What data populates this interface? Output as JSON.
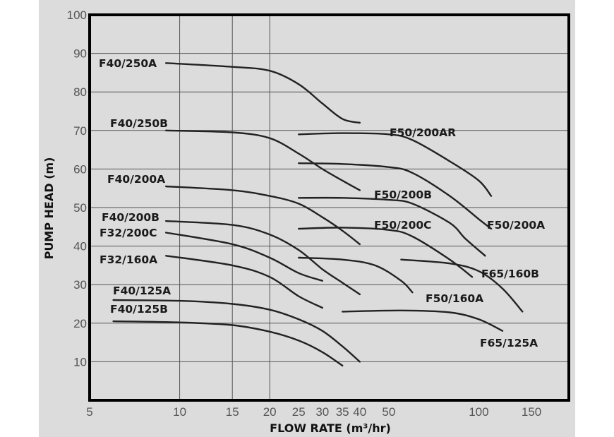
{
  "chart_data": {
    "type": "line",
    "title": "",
    "xlabel": "FLOW RATE (m³/hr)",
    "ylabel": "PUMP HEAD (m)",
    "xscale": "log",
    "xlim": [
      5,
      200
    ],
    "ylim": [
      0,
      100
    ],
    "grid": true,
    "x_ticks": [
      5,
      10,
      15,
      20,
      25,
      30,
      35,
      40,
      50,
      100,
      150
    ],
    "x_gridlines": [
      10,
      15,
      20
    ],
    "y_ticks": [
      10,
      20,
      30,
      40,
      50,
      60,
      70,
      80,
      90,
      100
    ],
    "y_gridlines": [
      10,
      20,
      30,
      40,
      50,
      60,
      70,
      80,
      90
    ],
    "series": [
      {
        "name": "F40/250A",
        "x": [
          9,
          15,
          20,
          25,
          30,
          35,
          40
        ],
        "y": [
          87.5,
          86.5,
          85.5,
          82,
          77,
          73,
          72
        ]
      },
      {
        "name": "F40/250B",
        "x": [
          9,
          15,
          20,
          25,
          30,
          35,
          40
        ],
        "y": [
          70,
          69.5,
          68,
          64,
          60,
          57,
          54.5
        ]
      },
      {
        "name": "F40/200A",
        "x": [
          9,
          15,
          20,
          25,
          30,
          35,
          40
        ],
        "y": [
          55.5,
          54.5,
          53,
          51,
          47.5,
          44,
          40.5
        ]
      },
      {
        "name": "F40/200B",
        "x": [
          9,
          15,
          20,
          25,
          30,
          35,
          40
        ],
        "y": [
          46.5,
          45.5,
          43,
          39,
          34,
          30.5,
          27.5
        ]
      },
      {
        "name": "F32/200C",
        "x": [
          9,
          15,
          20,
          25,
          30
        ],
        "y": [
          43.5,
          40.5,
          37,
          33,
          31
        ]
      },
      {
        "name": "F32/160A",
        "x": [
          9,
          15,
          20,
          25,
          30
        ],
        "y": [
          37.5,
          35,
          32,
          27,
          24
        ]
      },
      {
        "name": "F40/125A",
        "x": [
          6,
          10,
          15,
          20,
          25,
          30,
          35,
          40
        ],
        "y": [
          26,
          25.8,
          25,
          23.5,
          21,
          18,
          14,
          10
        ]
      },
      {
        "name": "F40/125B",
        "x": [
          6,
          10,
          15,
          20,
          25,
          30,
          35
        ],
        "y": [
          20.5,
          20.2,
          19.5,
          17.8,
          15.5,
          12.5,
          9
        ]
      },
      {
        "name": "F50/200AR",
        "x": [
          25,
          35,
          50,
          60,
          80,
          100,
          110
        ],
        "y": [
          69,
          69.3,
          69,
          67.5,
          62,
          57,
          53
        ]
      },
      {
        "name": "F50/200B",
        "x": [
          25,
          35,
          50,
          60,
          80,
          90,
          105
        ],
        "y": [
          52.5,
          52.5,
          52,
          51,
          46,
          42,
          37.5
        ]
      },
      {
        "name": "F50/200C",
        "x": [
          25,
          35,
          50,
          60,
          80,
          95
        ],
        "y": [
          44.5,
          44.8,
          44.2,
          42.5,
          36.5,
          32
        ]
      },
      {
        "name": "F50/200A",
        "x": [
          25,
          35,
          50,
          60,
          80,
          100,
          110
        ],
        "y": [
          61.5,
          61.3,
          60.5,
          59,
          53,
          47,
          44.5
        ]
      },
      {
        "name": "F50/160A",
        "x": [
          25,
          35,
          45,
          55,
          60
        ],
        "y": [
          37,
          36.5,
          35,
          31,
          28
        ]
      },
      {
        "name": "F65/160B",
        "x": [
          55,
          80,
          100,
          120,
          140
        ],
        "y": [
          36.5,
          35.5,
          33.5,
          29,
          23
        ]
      },
      {
        "name": "F65/125A",
        "x": [
          35,
          55,
          80,
          100,
          120
        ],
        "y": [
          23,
          23.3,
          22.8,
          21,
          18
        ]
      }
    ]
  }
}
